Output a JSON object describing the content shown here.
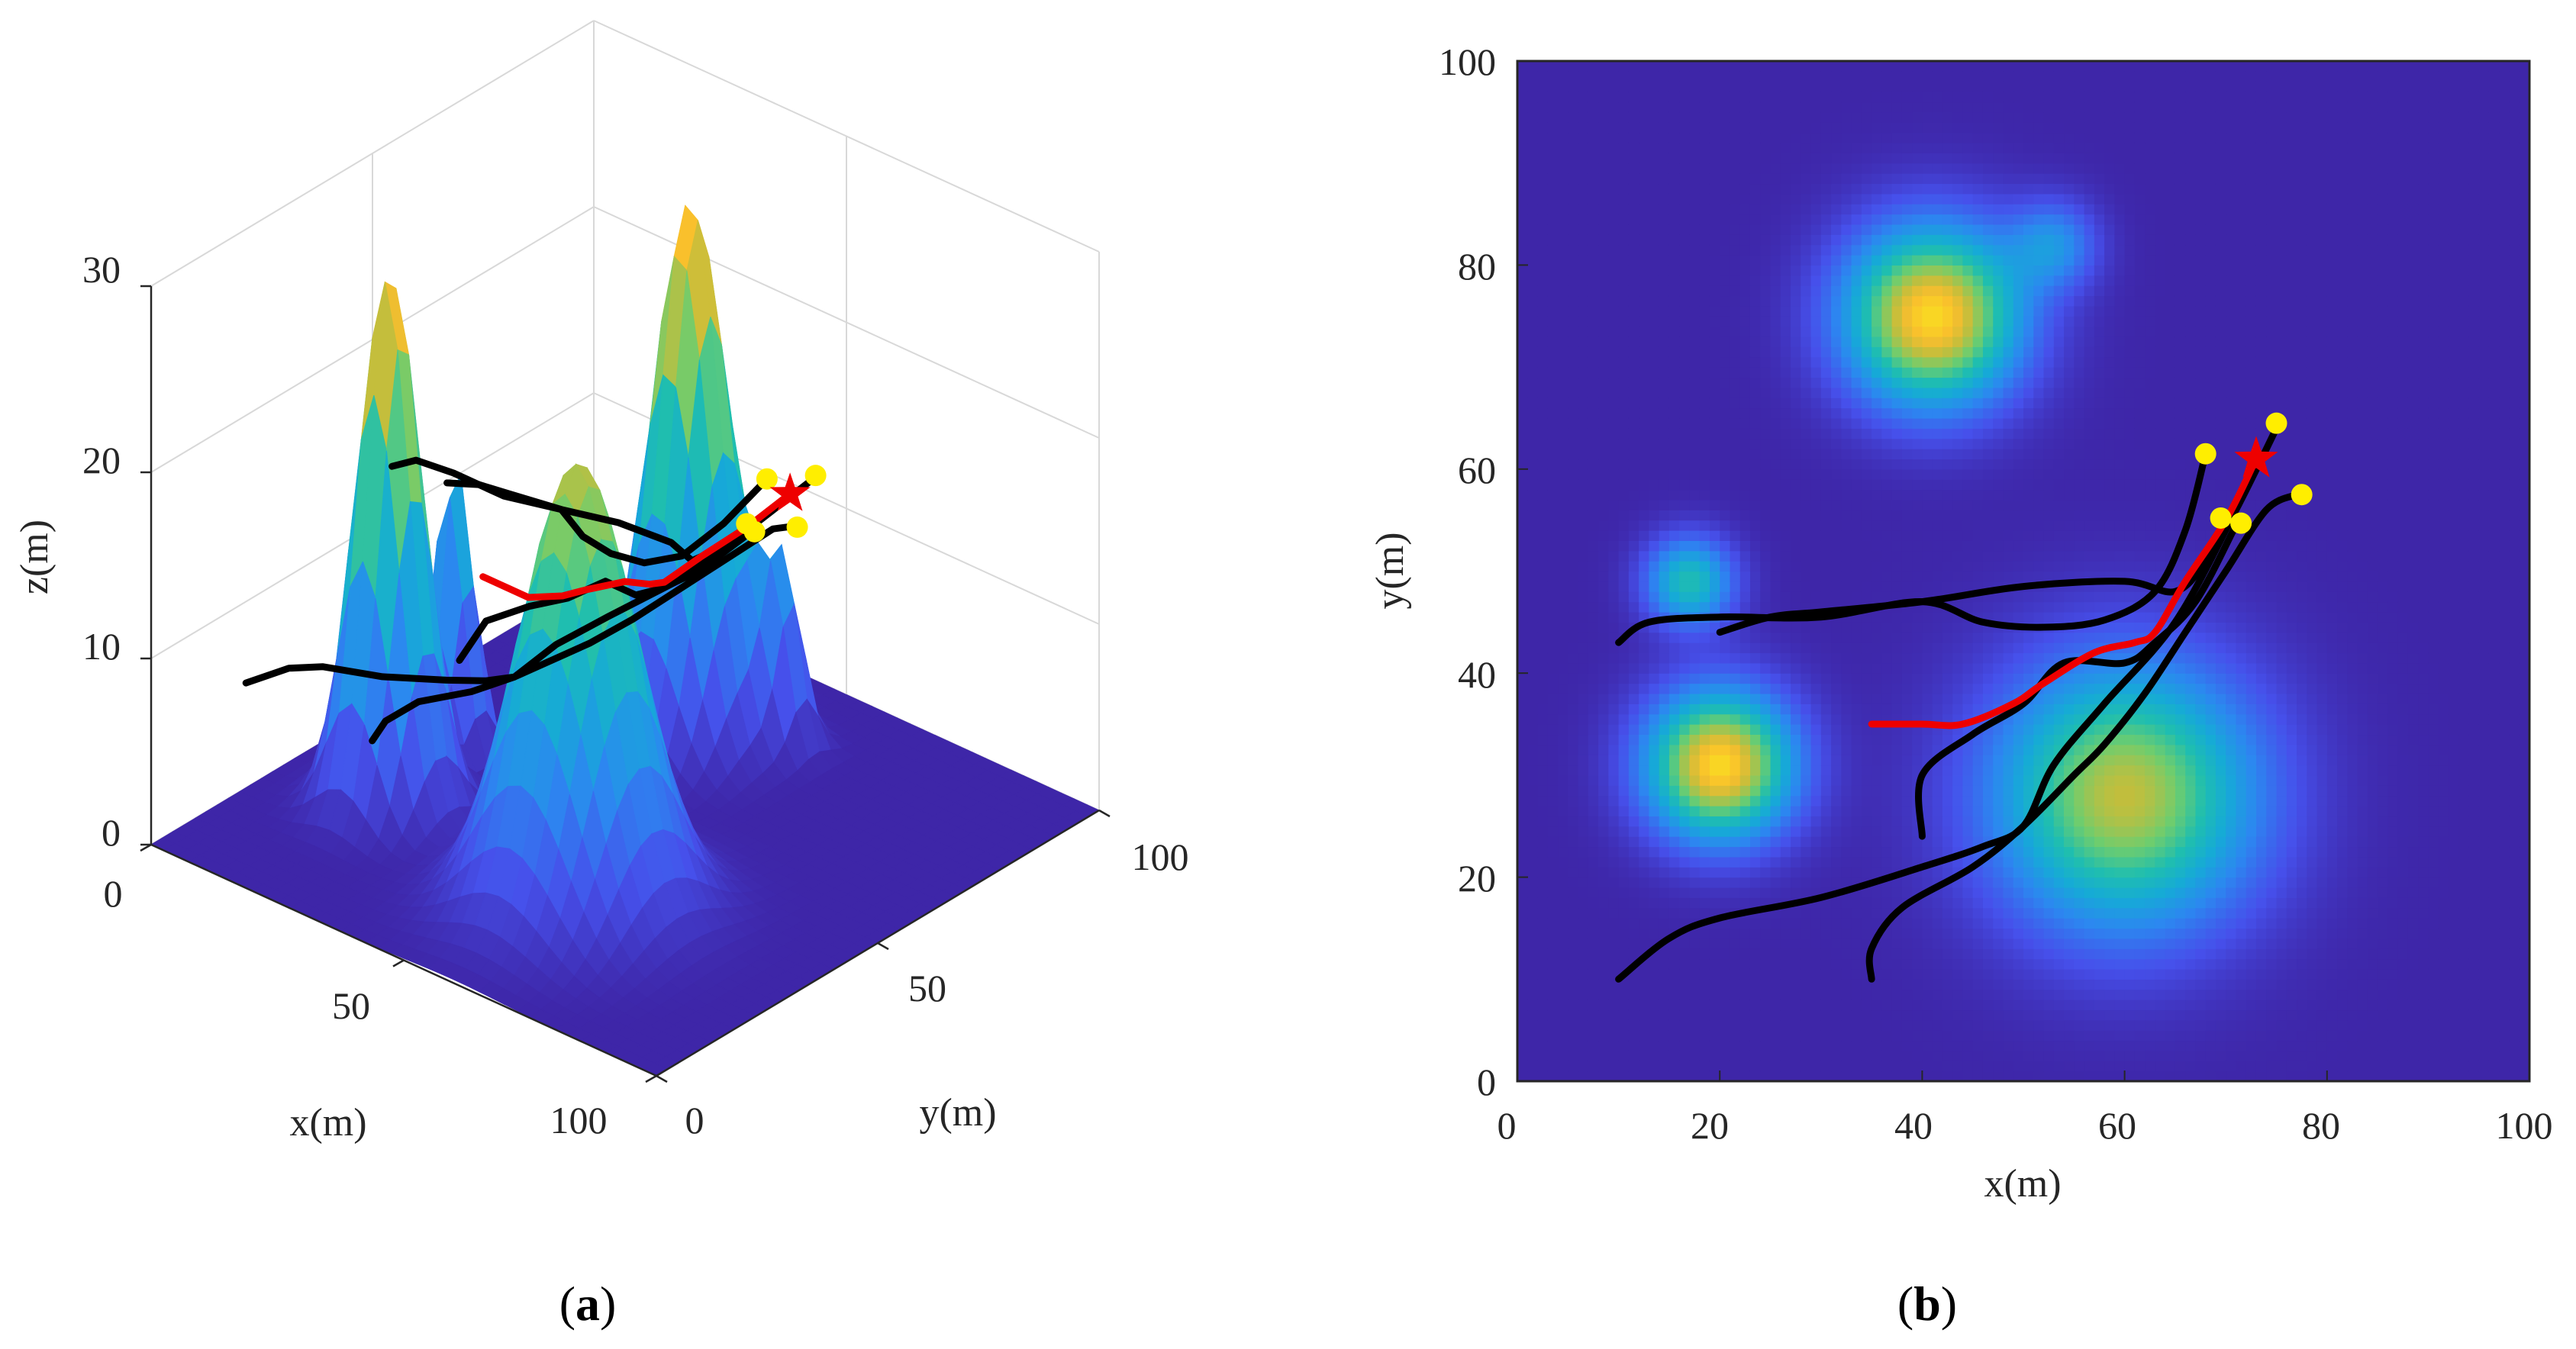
{
  "panels": {
    "a": {
      "label": "a"
    },
    "b": {
      "label": "b"
    }
  },
  "colors": {
    "surface_low": "#3e26a8",
    "surface_mid": "#1fb9b0",
    "surface_high": "#f9c02b",
    "trajectory": "#000000",
    "best_trajectory": "#ee0000",
    "start_marker": "#ffee00",
    "target_marker": "#ee0000"
  },
  "chart_data": [
    {
      "type": "surface",
      "panel": "a",
      "xlabel": "x(m)",
      "ylabel": "y(m)",
      "zlabel": "z(m)",
      "xlim": [
        0,
        100
      ],
      "ylim": [
        0,
        100
      ],
      "zlim": [
        0,
        30
      ],
      "x_ticks": [
        "0",
        "50",
        "100"
      ],
      "y_ticks": [
        "0",
        "50",
        "100"
      ],
      "z_ticks": [
        "0",
        "10",
        "20",
        "30"
      ],
      "grid": true,
      "peaks": [
        {
          "x": 20,
          "y": 31,
          "height": 29,
          "sigma": 5
        },
        {
          "x": 60,
          "y": 28,
          "height": 24,
          "sigma": 9
        },
        {
          "x": 41,
          "y": 75,
          "height": 29,
          "sigma": 6
        },
        {
          "x": 53,
          "y": 82,
          "height": 9,
          "sigma": 3
        },
        {
          "x": 17,
          "y": 49,
          "height": 16,
          "sigma": 3
        }
      ]
    },
    {
      "type": "heatmap",
      "panel": "b",
      "xlabel": "x(m)",
      "ylabel": "y(m)",
      "xlim": [
        0,
        100
      ],
      "ylim": [
        0,
        100
      ],
      "x_ticks": [
        "0",
        "20",
        "40",
        "60",
        "80",
        "100"
      ],
      "y_ticks": [
        "0",
        "20",
        "40",
        "60",
        "80",
        "100"
      ],
      "peaks": [
        {
          "x": 20,
          "y": 31,
          "height": 29,
          "sigma": 5
        },
        {
          "x": 60,
          "y": 28,
          "height": 24,
          "sigma": 9
        },
        {
          "x": 41,
          "y": 75,
          "height": 29,
          "sigma": 6
        },
        {
          "x": 53,
          "y": 82,
          "height": 9,
          "sigma": 3
        },
        {
          "x": 17,
          "y": 49,
          "height": 16,
          "sigma": 3
        }
      ],
      "trajectories": [
        {
          "color": "#000000",
          "points": [
            [
              10,
              43
            ],
            [
              13,
              45
            ],
            [
              20,
              45.5
            ],
            [
              30,
              45.5
            ],
            [
              40,
              47
            ],
            [
              46,
              45
            ],
            [
              52,
              44.5
            ],
            [
              58,
              45.2
            ],
            [
              63,
              48
            ],
            [
              66,
              54
            ],
            [
              68,
              61.5
            ]
          ]
        },
        {
          "color": "#000000",
          "points": [
            [
              20,
              44
            ],
            [
              25,
              45.5
            ],
            [
              30,
              46
            ],
            [
              40,
              47
            ],
            [
              50,
              48.5
            ],
            [
              60,
              49
            ],
            [
              65,
              48
            ],
            [
              68,
              51
            ],
            [
              70,
              55
            ]
          ]
        },
        {
          "color": "#000000",
          "points": [
            [
              40,
              24
            ],
            [
              40,
              30
            ],
            [
              45,
              34
            ],
            [
              50,
              37
            ],
            [
              54,
              41
            ],
            [
              60,
              41
            ],
            [
              63,
              43
            ],
            [
              67,
              47
            ],
            [
              71,
              54.5
            ]
          ]
        },
        {
          "color": "#000000",
          "points": [
            [
              10,
              10
            ],
            [
              15,
              14
            ],
            [
              20,
              16
            ],
            [
              30,
              18
            ],
            [
              40,
              21
            ],
            [
              46,
              23
            ],
            [
              50,
              25
            ],
            [
              53,
              31
            ],
            [
              58,
              37
            ],
            [
              65,
              45
            ],
            [
              71,
              56
            ],
            [
              75,
              64
            ]
          ]
        },
        {
          "color": "#000000",
          "points": [
            [
              35,
              10
            ],
            [
              35,
              13
            ],
            [
              38,
              17
            ],
            [
              45,
              21
            ],
            [
              50,
              25
            ],
            [
              55,
              30
            ],
            [
              58,
              33
            ],
            [
              62,
              38
            ],
            [
              66,
              44
            ],
            [
              70,
              50
            ],
            [
              74,
              56
            ],
            [
              77,
              57.5
            ]
          ]
        },
        {
          "color": "#ee0000",
          "points": [
            [
              35,
              35
            ],
            [
              40,
              35
            ],
            [
              44,
              35
            ],
            [
              49,
              37
            ],
            [
              52,
              39
            ],
            [
              57,
              42
            ],
            [
              61,
              43
            ],
            [
              63,
              44
            ],
            [
              66,
              49
            ],
            [
              70,
              55
            ],
            [
              73,
              61
            ]
          ]
        }
      ],
      "start_points": [
        [
          68,
          61.5
        ],
        [
          75,
          64.5
        ],
        [
          77.5,
          57.5
        ],
        [
          69.5,
          55.2
        ],
        [
          71.5,
          54.7
        ]
      ],
      "target": [
        73,
        61
      ]
    }
  ]
}
